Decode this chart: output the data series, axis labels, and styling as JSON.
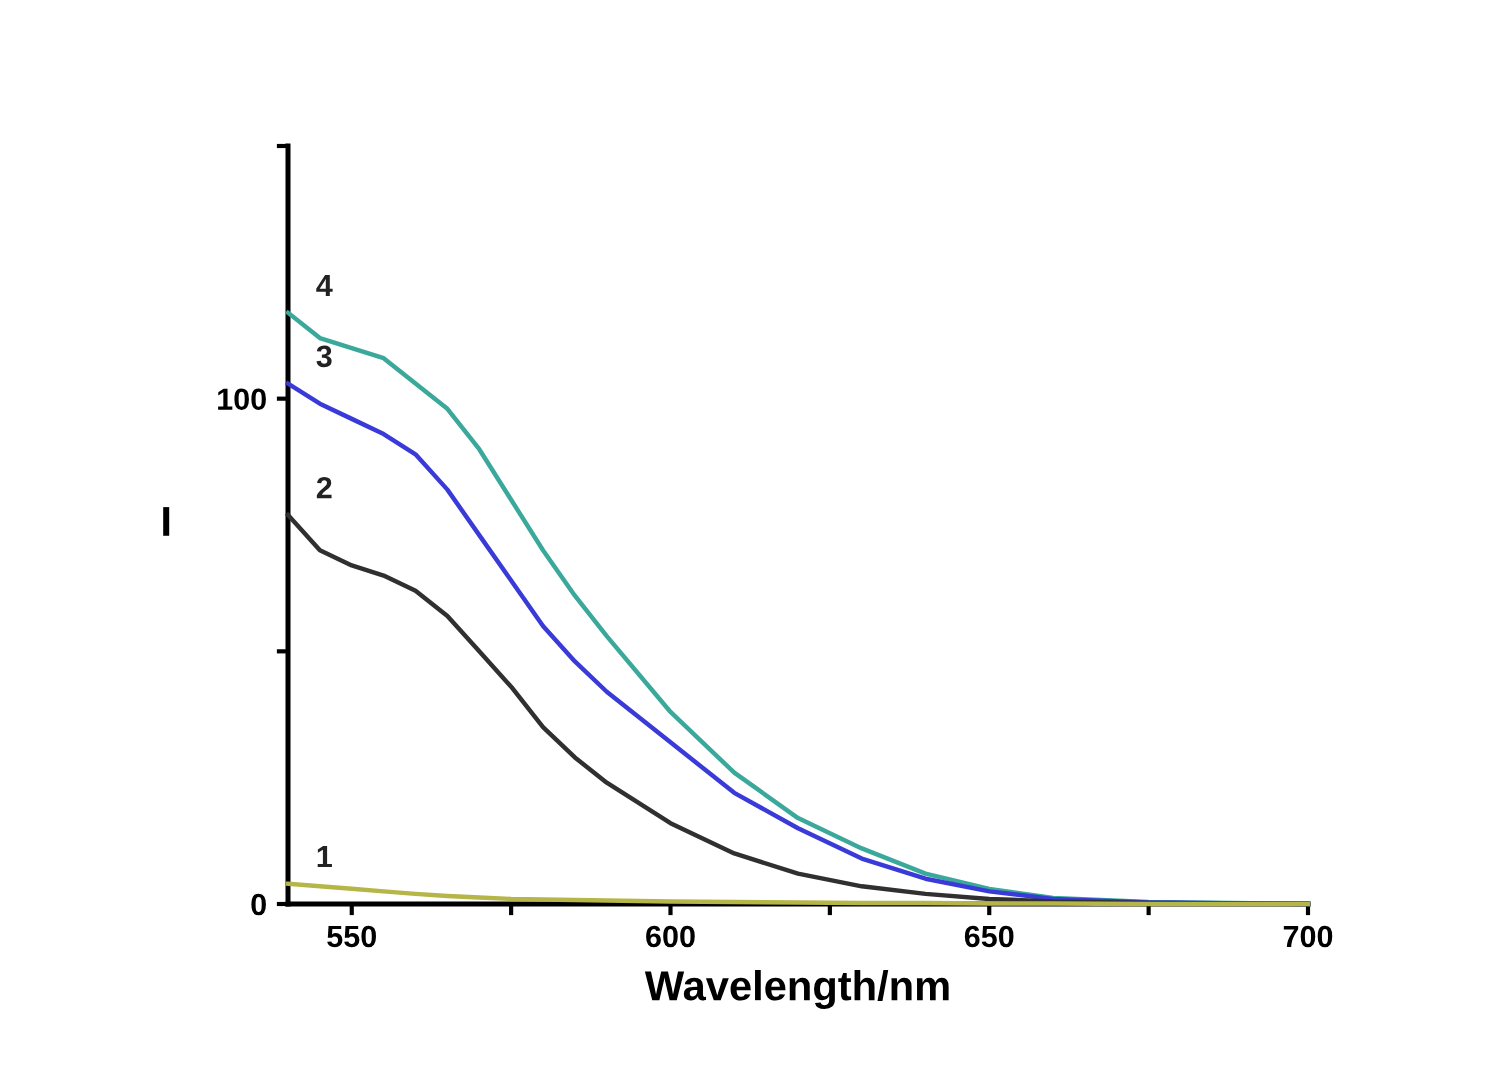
{
  "chart_data": {
    "type": "line",
    "xlabel": "Wavelength/nm",
    "ylabel": "I",
    "x": [
      540,
      545,
      550,
      555,
      560,
      565,
      570,
      575,
      580,
      585,
      590,
      600,
      610,
      620,
      630,
      640,
      650,
      660,
      675,
      700
    ],
    "series": [
      {
        "name": "1",
        "color": "#b5b548",
        "values": [
          4,
          3.5,
          3,
          2.5,
          2,
          1.6,
          1.3,
          1,
          0.9,
          0.8,
          0.7,
          0.5,
          0.4,
          0.3,
          0.2,
          0.2,
          0.1,
          0.1,
          0,
          0
        ]
      },
      {
        "name": "2",
        "color": "#303030",
        "values": [
          77,
          70,
          67,
          65,
          62,
          57,
          50,
          43,
          35,
          29,
          24,
          16,
          10,
          6,
          3.5,
          2,
          1,
          0.5,
          0.2,
          0
        ]
      },
      {
        "name": "3",
        "color": "#3a3ad8",
        "values": [
          103,
          99,
          96,
          93,
          89,
          82,
          73,
          64,
          55,
          48,
          42,
          32,
          22,
          15,
          9,
          5,
          2.5,
          1,
          0.3,
          0
        ]
      },
      {
        "name": "4",
        "color": "#3aa89a",
        "values": [
          117,
          112,
          110,
          108,
          103,
          98,
          90,
          80,
          70,
          61,
          53,
          38,
          26,
          17,
          11,
          6,
          3,
          1.2,
          0.4,
          0
        ]
      }
    ],
    "xlim": [
      540,
      700
    ],
    "ylim": [
      0,
      150
    ],
    "xticks": [
      550,
      {
        "value": 575,
        "label": null
      },
      600,
      {
        "value": 625,
        "label": null
      },
      650,
      {
        "value": 675,
        "label": null
      },
      700
    ],
    "yticks": [
      0,
      {
        "value": 50,
        "label": null
      },
      100,
      {
        "value": 150,
        "label": null
      }
    ],
    "grid": false,
    "legend": false
  }
}
